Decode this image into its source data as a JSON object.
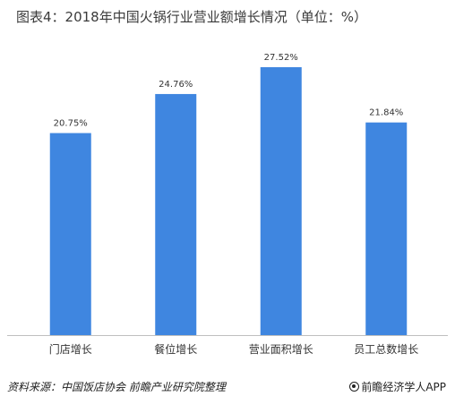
{
  "title": "图表4：2018年中国火锅行业营业额增长情况（单位：%）",
  "source": "资料来源：中国饭店协会  前瞻产业研究院整理",
  "brand": "前瞻经济学人APP",
  "colors": {
    "bar": "#3f86e0",
    "axis": "#bfbfbf",
    "text": "#333333"
  },
  "chart_data": {
    "type": "bar",
    "title": "图表4：2018年中国火锅行业营业额增长情况（单位：%）",
    "categories": [
      "门店增长",
      "餐位增长",
      "营业面积增长",
      "员工总数增长"
    ],
    "values": [
      20.75,
      24.76,
      27.52,
      21.84
    ],
    "data_labels": [
      "20.75%",
      "24.76%",
      "27.52%",
      "21.84%"
    ],
    "xlabel": "",
    "ylabel": "",
    "ylim": [
      0,
      30
    ],
    "grid": false,
    "legend": "none"
  }
}
